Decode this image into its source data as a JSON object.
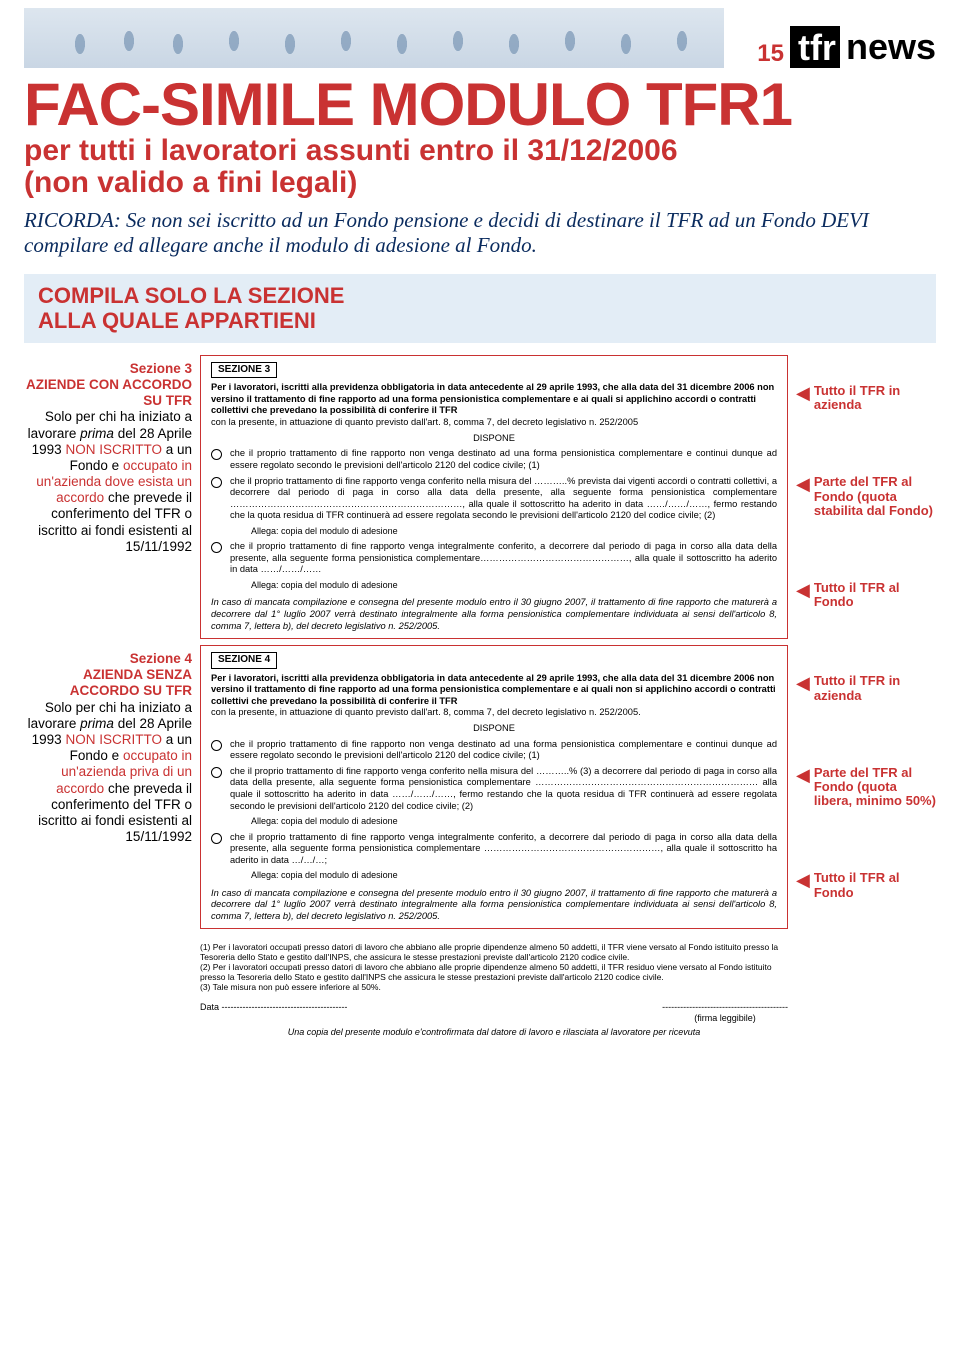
{
  "colors": {
    "red": "#c93232",
    "blue_box": "#e3edf6",
    "dark": "#000000",
    "silhouette_bg": "#dde6ef"
  },
  "header": {
    "page_number": "15",
    "logo_tfr": "tfr",
    "logo_news": "news"
  },
  "headline": "FAC-SIMILE MODULO TFR1",
  "subhead_line1": "per tutti i lavoratori assunti entro il 31/12/2006",
  "subhead_line2": "(non valido a fini legali)",
  "ricorda": "RICORDA: Se non sei iscritto ad un Fondo pensione e decidi di destinare il TFR ad un Fondo DEVI compilare ed allegare anche il modulo di adesione al Fondo.",
  "blue_box_line1": "COMPILA SOLO LA SEZIONE",
  "blue_box_line2": "ALLA QUALE APPARTIENI",
  "section3": {
    "left_title1": "Sezione 3",
    "left_title2": "AZIENDE CON ACCORDO SU TFR",
    "left_body_parts": {
      "p1": "Solo per chi ha iniziato a lavorare ",
      "p2_italic": "prima",
      "p3": " del 28 Aprile 1993 ",
      "p4_red": "NON ISCRITTO",
      "p5": " a un Fondo e ",
      "p6_red": "occupato in un'azienda dove esista un accordo",
      "p7": " che prevede il conferimento del TFR o iscritto ai fondi esistenti al 15/11/1992"
    },
    "box": {
      "label": "SEZIONE 3",
      "intro": "Per i lavoratori, iscritti alla previdenza obbligatoria in data antecedente al 29 aprile 1993, che alla data del 31 dicembre 2006 non versino il trattamento di fine rapporto ad una forma pensionistica complementare e ai quali si applichino accordi o contratti collettivi che prevedano la possibilità di conferire il TFR",
      "intro_sub": "con la presente, in attuazione di quanto previsto dall'art. 8, comma 7, del decreto legislativo n. 252/2005",
      "dispone": "DISPONE",
      "opt1": "che il proprio trattamento di fine rapporto non venga destinato ad una forma pensionistica complementare e continui dunque ad essere regolato secondo le previsioni dell'articolo 2120 del codice civile; (1)",
      "opt2": "che il proprio trattamento di fine rapporto venga conferito nella misura del ………..% prevista dai vigenti accordi o contratti collettivi, a decorrere dal periodo di paga in corso alla data della presente, alla seguente forma pensionistica complementare …………………………………………………………………, alla quale il sottoscritto ha aderito in data ……/……/……, fermo restando che la quota residua di TFR continuerà ad essere regolata secondo le previsioni dell'articolo 2120 del codice civile; (2)",
      "allega": "Allega: copia del modulo di adesione",
      "opt3": "che il proprio trattamento di fine rapporto venga integralmente conferito, a decorrere dal periodo di paga in corso alla data della presente, alla seguente forma pensionistica complementare…………………………………………, alla quale il sottoscritto ha aderito in data ……/……/……",
      "footer": "In caso di mancata compilazione e consegna del presente modulo entro il 30 giugno 2007, il trattamento di fine rapporto che maturerà a decorrere dal 1° luglio 2007 verrà destinato integralmente alla forma pensionistica complementare individuata ai sensi dell'articolo 8, comma 7, lettera b), del decreto legislativo n. 252/2005."
    },
    "callouts": [
      "Tutto il TFR in azienda",
      "Parte del TFR al Fondo (quota stabilita dal Fondo)",
      "Tutto il TFR al Fondo"
    ]
  },
  "section4": {
    "left_title1": "Sezione 4",
    "left_title2": "AZIENDA SENZA ACCORDO SU TFR",
    "left_body_parts": {
      "p1": "Solo per chi ha iniziato a lavorare ",
      "p2_italic": "prima",
      "p3": " del 28 Aprile 1993 ",
      "p4_red": "NON ISCRITTO",
      "p5": " a un Fondo e ",
      "p6_red": "occupato in un'azienda priva di un accordo",
      "p7": " che preveda il conferimento del TFR o iscritto ai fondi esistenti al 15/11/1992"
    },
    "box": {
      "label": "SEZIONE 4",
      "intro": "Per i lavoratori, iscritti alla previdenza obbligatoria in data antecedente al 29 aprile 1993, che alla data del 31 dicembre 2006 non versino il trattamento di fine rapporto ad una forma pensionistica complementare e ai quali non si applichino accordi o contratti collettivi che prevedano la possibilità di conferire il TFR",
      "intro_sub": "con la presente, in attuazione di quanto previsto dall'art. 8, comma 7, del decreto legislativo n. 252/2005.",
      "dispone": "DISPONE",
      "opt1": "che il proprio trattamento di fine rapporto non venga destinato ad una forma pensionistica complementare e continui dunque ad essere regolato secondo le previsioni dell'articolo 2120 del codice civile; (1)",
      "opt2": "che il proprio trattamento di fine rapporto venga conferito nella misura del ………..% (3) a decorrere dal periodo di paga in corso alla data della presente, alla seguente forma pensionistica complementare ……………………………………………………………… alla quale il sottoscritto ha aderito in data ……/……/……, fermo restando che la quota residua di TFR continuerà ad essere regolata secondo le previsioni dell'articolo 2120 del codice civile; (2)",
      "allega": "Allega: copia del modulo di adesione",
      "opt3": "che il proprio trattamento di fine rapporto venga integralmente conferito, a decorrere dal periodo di paga in corso alla data della presente, alla seguente forma pensionistica complementare …………………………………………………, alla quale il sottoscritto ha aderito in data …/…/…;",
      "footer": "In caso di mancata compilazione e consegna del presente modulo entro il 30 giugno 2007, il trattamento di fine rapporto che maturerà a decorrere dal 1° luglio 2007 verrà destinato integralmente alla forma pensionistica complementare individuata ai sensi dell'articolo 8, comma 7, lettera b), del decreto legislativo n. 252/2005."
    },
    "callouts": [
      "Tutto il TFR in azienda",
      "Parte del TFR al Fondo (quota libera, minimo 50%)",
      "Tutto il TFR al Fondo"
    ]
  },
  "footnotes": {
    "n1": "(1) Per i lavoratori occupati presso datori di lavoro che abbiano alle proprie dipendenze almeno 50 addetti, il TFR viene versato al Fondo istituito presso la Tesoreria dello Stato e gestito dall'INPS, che assicura le stesse prestazioni previste dall'articolo 2120 codice civile.",
    "n2": "(2) Per i lavoratori occupati presso datori di lavoro che abbiano alle proprie dipendenze almeno 50 addetti, il TFR residuo viene versato al Fondo istituito presso la Tesoreria dello Stato e gestito dall'INPS che assicura le stesse prestazioni previste dall'articolo 2120 codice civile.",
    "n3": "(3) Tale misura non può essere inferiore al 50%.",
    "data_label": "Data ------------------------------------------",
    "sig_line": "------------------------------------------",
    "sig_label": "(firma leggibile)",
    "ricevuta": "Una copia del presente modulo e'controfirmata dal datore di lavoro e rilasciata al lavoratore per ricevuta"
  }
}
